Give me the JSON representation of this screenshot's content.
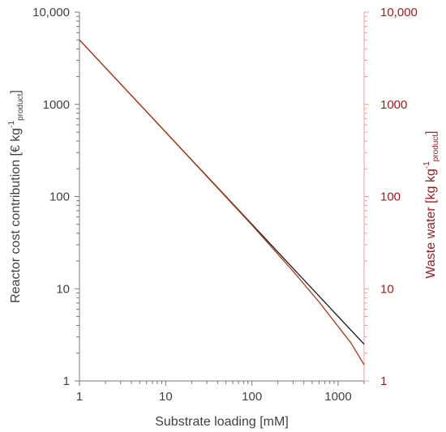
{
  "chart_data": {
    "type": "line",
    "x_scale": "log",
    "y_scale": "log",
    "xlim": [
      1,
      2000
    ],
    "ylim_left": [
      1,
      10000
    ],
    "ylim_right": [
      1,
      10000
    ],
    "xlabel": "Substrate loading [mM]",
    "ylabel_left": {
      "main": "Reactor cost contribution [€ kg",
      "sup": "-1",
      "sub": "product",
      "close": "]"
    },
    "ylabel_right": {
      "main": "Waste water [kg kg",
      "sup": "-1",
      "sub": "product",
      "close": "]"
    },
    "x_ticks": [
      "1",
      "10",
      "100",
      "1000"
    ],
    "y_ticks_left": [
      "1",
      "10",
      "100",
      "1000",
      "10,000"
    ],
    "y_ticks_right": [
      "1",
      "10",
      "100",
      "1000",
      "10,000"
    ],
    "series": [
      {
        "axis": "left",
        "color": "#1a1a1a",
        "x": [
          1,
          10,
          100,
          1000,
          2000
        ],
        "y": [
          5000,
          500,
          50,
          5,
          2.5
        ]
      },
      {
        "axis": "right",
        "color": "#b03a1a",
        "x": [
          1,
          10,
          100,
          300,
          600,
          1000,
          1400,
          2000
        ],
        "y": [
          5000,
          500,
          49,
          15.5,
          7.2,
          3.9,
          2.6,
          1.5
        ]
      }
    ]
  }
}
